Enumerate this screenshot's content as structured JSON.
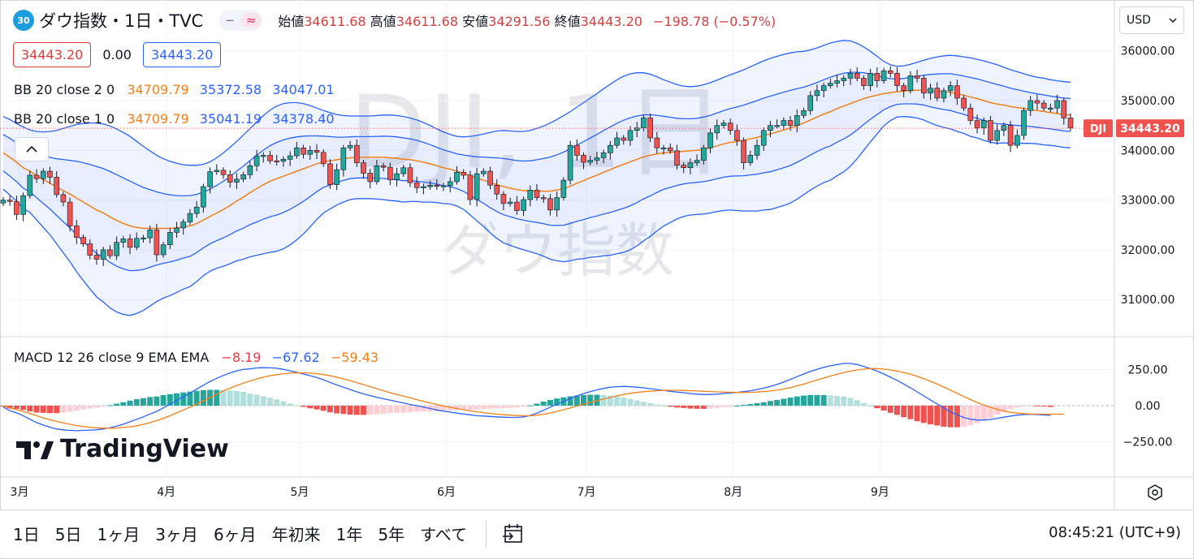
{
  "header": {
    "badge": "30",
    "symbol_title": "ダウ指数・1日・TVC",
    "pill_dash": "−",
    "pill_wave": "≈",
    "open_label": "始値",
    "open": "34611.68",
    "high_label": "高値",
    "high": "34611.68",
    "low_label": "安値",
    "low": "34291.56",
    "close_label": "終値",
    "close": "34443.20",
    "change": "−198.78 (−0.57%)"
  },
  "price_boxes": {
    "sell": "34443.20",
    "spread": "0.00",
    "buy": "34443.20"
  },
  "indicators": {
    "bb2": {
      "name": "BB 20 close 2 0",
      "basis": "34709.79",
      "upper": "35372.58",
      "lower": "34047.01"
    },
    "bb1": {
      "name": "BB 20 close 1 0",
      "basis": "34709.79",
      "upper": "35041.19",
      "lower": "34378.40"
    },
    "macd": {
      "name": "MACD 12 26 close 9 EMA EMA",
      "hist": "−8.19",
      "macd": "−67.62",
      "signal": "−59.43"
    }
  },
  "currency": "USD",
  "watermark": {
    "main": "DJI, 1日",
    "sub": "ダウ指数"
  },
  "logo_text": "TradingView",
  "last_price_label": {
    "symbol": "DJI",
    "price": "34443.20"
  },
  "range_buttons": [
    "1日",
    "5日",
    "1ヶ月",
    "3ヶ月",
    "6ヶ月",
    "年初来",
    "1年",
    "5年",
    "すべて"
  ],
  "clock": "08:45:21 (UTC+9)",
  "colors": {
    "up": "#26a69a",
    "down": "#ef5350",
    "bb_basis": "#f57f17",
    "bb_band": "#2962ff",
    "hist_up": "#26a69a",
    "hist_up_light": "#b2dfdb",
    "hist_down": "#ef5350",
    "hist_down_light": "#ffcdd2",
    "macd_line": "#2962ff",
    "signal_line": "#f57f17"
  },
  "chart_data": {
    "type": "candlestick",
    "title": "ダウ指数・1日・TVC",
    "price_axis": {
      "ticks": [
        31000,
        32000,
        33000,
        34000,
        35000,
        36000
      ],
      "labels": [
        "31000.00",
        "32000.00",
        "33000.00",
        "34000.00",
        "35000.00",
        "36000.00"
      ]
    },
    "macd_axis": {
      "ticks": [
        250,
        0,
        -250
      ],
      "labels": [
        "250.00",
        "0.00",
        "−250.00"
      ]
    },
    "x_axis": {
      "labels": [
        "3月",
        "4月",
        "5月",
        "6月",
        "7月",
        "8月",
        "9月"
      ]
    },
    "last_price": 34443.2,
    "candles": {
      "start": "2023-03-01",
      "close": [
        33000,
        32970,
        32710,
        33090,
        33500,
        33430,
        33580,
        33460,
        33110,
        32960,
        32480,
        32250,
        32120,
        31890,
        31810,
        32000,
        31880,
        32150,
        32220,
        32050,
        32230,
        32240,
        32400,
        31900,
        32100,
        32350,
        32440,
        32560,
        32730,
        32860,
        33270,
        33570,
        33600,
        33510,
        33360,
        33420,
        33510,
        33690,
        33890,
        33900,
        33790,
        33780,
        33820,
        33890,
        34050,
        33920,
        34000,
        33960,
        33730,
        33310,
        33610,
        34050,
        34100,
        33750,
        33540,
        33370,
        33690,
        33660,
        33410,
        33530,
        33650,
        33350,
        33250,
        33270,
        33300,
        33290,
        33290,
        33370,
        33560,
        33500,
        33010,
        33530,
        33580,
        33300,
        33120,
        32930,
        32960,
        32790,
        33010,
        33200,
        33050,
        33030,
        32800,
        33050,
        33400,
        34100,
        33900,
        33760,
        33800,
        33850,
        33950,
        34100,
        34250,
        34200,
        34400,
        34450,
        34650,
        34250,
        34050,
        34050,
        33990,
        33700,
        33650,
        33750,
        33800,
        34050,
        34350,
        34500,
        34550,
        34400,
        34200,
        33750,
        33900,
        34100,
        34400,
        34500,
        34500,
        34600,
        34500,
        34700,
        34800,
        35100,
        35200,
        35300,
        35350,
        35400,
        35450,
        35550,
        35450,
        35300,
        35550,
        35400,
        35600,
        35550,
        35300,
        35200,
        35500,
        35450,
        35150,
        35250,
        35050,
        35200,
        35300,
        35050,
        34850,
        34600,
        34450,
        34600,
        34200,
        34400,
        34500,
        34100,
        34300,
        34800,
        35000,
        34950,
        34850,
        34850,
        35000,
        34650,
        34450
      ]
    },
    "bollinger_2sigma": {
      "basis": [
        33950,
        33860,
        33760,
        33650,
        33580,
        33490,
        33410,
        33340,
        33260,
        33190,
        33120,
        33040,
        32960,
        32880,
        32800,
        32740,
        32660,
        32590,
        32530,
        32480,
        32450,
        32430,
        32430,
        32430,
        32430,
        32430,
        32440,
        32460,
        32480,
        32530,
        32600,
        32670,
        32740,
        32810,
        32890,
        32980,
        33060,
        33150,
        33230,
        33310,
        33380,
        33430,
        33480,
        33530,
        33580,
        33630,
        33680,
        33730,
        33770,
        33790,
        33810,
        33830,
        33850,
        33860,
        33860,
        33860,
        33860,
        33860,
        33850,
        33840,
        33820,
        33810,
        33790,
        33760,
        33730,
        33690,
        33650,
        33620,
        33580,
        33540,
        33490,
        33440,
        33400,
        33350,
        33310,
        33270,
        33240,
        33210,
        33190,
        33180,
        33180,
        33180,
        33180,
        33200,
        33230,
        33280,
        33340,
        33390,
        33450,
        33500,
        33560,
        33610,
        33670,
        33720,
        33770,
        33820,
        33870,
        33900,
        33930,
        33950,
        33960,
        33970,
        33980,
        33990,
        34000,
        34020,
        34050,
        34090,
        34130,
        34160,
        34180,
        34200,
        34230,
        34260,
        34300,
        34330,
        34370,
        34410,
        34450,
        34500,
        34550,
        34610,
        34670,
        34730,
        34780,
        34840,
        34890,
        34940,
        34990,
        35040,
        35080,
        35110,
        35140,
        35160,
        35180,
        35190,
        35200,
        35210,
        35210,
        35200,
        35190,
        35180,
        35170,
        35140,
        35110,
        35070,
        35040,
        35000,
        34960,
        34930,
        34910,
        34880,
        34860,
        34840,
        34820,
        34800,
        34780,
        34760,
        34740,
        34720,
        34710
      ],
      "upper": [
        34680,
        34620,
        34540,
        34470,
        34410,
        34380,
        34370,
        34380,
        34400,
        34440,
        34480,
        34520,
        34540,
        34550,
        34550,
        34530,
        34490,
        34430,
        34360,
        34280,
        34180,
        34080,
        33990,
        33900,
        33830,
        33780,
        33740,
        33710,
        33700,
        33700,
        33720,
        33770,
        33850,
        33950,
        34060,
        34180,
        34310,
        34440,
        34570,
        34700,
        34810,
        34890,
        34940,
        34960,
        34960,
        34940,
        34900,
        34850,
        34800,
        34760,
        34720,
        34700,
        34690,
        34690,
        34690,
        34690,
        34700,
        34710,
        34710,
        34700,
        34680,
        34650,
        34610,
        34560,
        34500,
        34430,
        34370,
        34320,
        34280,
        34270,
        34280,
        34300,
        34330,
        34360,
        34390,
        34400,
        34390,
        34380,
        34380,
        34400,
        34440,
        34490,
        34550,
        34620,
        34700,
        34780,
        34870,
        34960,
        35050,
        35140,
        35240,
        35330,
        35420,
        35490,
        35540,
        35560,
        35560,
        35530,
        35480,
        35420,
        35370,
        35320,
        35290,
        35280,
        35290,
        35320,
        35360,
        35410,
        35470,
        35520,
        35570,
        35620,
        35680,
        35740,
        35800,
        35850,
        35890,
        35930,
        35960,
        35980,
        35990,
        36020,
        36060,
        36110,
        36160,
        36190,
        36210,
        36200,
        36150,
        36080,
        35990,
        35890,
        35790,
        35720,
        35690,
        35700,
        35730,
        35770,
        35810,
        35850,
        35880,
        35900,
        35910,
        35900,
        35880,
        35860,
        35830,
        35800,
        35760,
        35720,
        35670,
        35620,
        35580,
        35540,
        35500,
        35470,
        35450,
        35420,
        35400,
        35380,
        35370
      ],
      "lower": [
        33220,
        33100,
        32980,
        32830,
        32750,
        32600,
        32450,
        32300,
        32120,
        31940,
        31760,
        31560,
        31380,
        31210,
        31050,
        30950,
        30830,
        30750,
        30700,
        30680,
        30720,
        30780,
        30870,
        30960,
        31030,
        31080,
        31140,
        31210,
        31260,
        31360,
        31480,
        31570,
        31630,
        31670,
        31720,
        31780,
        31810,
        31860,
        31890,
        31920,
        31950,
        31970,
        32020,
        32100,
        32200,
        32320,
        32460,
        32610,
        32740,
        32820,
        32900,
        32960,
        33010,
        33030,
        33030,
        33030,
        33020,
        33010,
        32990,
        32980,
        32960,
        32970,
        32970,
        32960,
        32960,
        32950,
        32930,
        32920,
        32880,
        32810,
        32700,
        32580,
        32470,
        32340,
        32230,
        32140,
        32090,
        32040,
        32000,
        31960,
        31920,
        31870,
        31810,
        31780,
        31760,
        31780,
        31810,
        31820,
        31850,
        31860,
        31880,
        31890,
        31920,
        31950,
        32000,
        32080,
        32180,
        32270,
        32380,
        32480,
        32550,
        32620,
        32670,
        32700,
        32710,
        32720,
        32740,
        32770,
        32790,
        32800,
        32790,
        32780,
        32780,
        32780,
        32800,
        32810,
        32850,
        32890,
        32940,
        33020,
        33110,
        33200,
        33280,
        33350,
        33400,
        33490,
        33570,
        33680,
        33830,
        34000,
        34170,
        34330,
        34490,
        34600,
        34670,
        34680,
        34670,
        34650,
        34610,
        34550,
        34500,
        34460,
        34430,
        34380,
        34340,
        34280,
        34250,
        34200,
        34160,
        34140,
        34150,
        34140,
        34140,
        34140,
        34140,
        34130,
        34110,
        34100,
        34080,
        34060,
        34050
      ]
    },
    "bollinger_1sigma": {
      "basis": "same as 2σ basis",
      "upper_lower_offset": "half of 2σ band width"
    },
    "macd": {
      "macd": [
        -10,
        -35,
        -50,
        -70,
        -95,
        -118,
        -135,
        -150,
        -162,
        -168,
        -172,
        -174,
        -172,
        -170,
        -168,
        -162,
        -154,
        -142,
        -128,
        -112,
        -95,
        -78,
        -58,
        -40,
        -15,
        10,
        36,
        62,
        88,
        115,
        142,
        168,
        190,
        210,
        228,
        242,
        252,
        256,
        262,
        264,
        263,
        260,
        252,
        242,
        232,
        220,
        208,
        196,
        180,
        162,
        144,
        128,
        112,
        96,
        82,
        70,
        58,
        48,
        38,
        28,
        18,
        8,
        0,
        -10,
        -20,
        -30,
        -38,
        -45,
        -52,
        -58,
        -64,
        -70,
        -72,
        -75,
        -78,
        -80,
        -82,
        -82,
        -78,
        -68,
        -52,
        -32,
        -10,
        10,
        30,
        50,
        68,
        84,
        98,
        110,
        120,
        128,
        132,
        134,
        132,
        128,
        124,
        118,
        112,
        106,
        100,
        94,
        90,
        84,
        80,
        78,
        78,
        80,
        84,
        88,
        92,
        98,
        104,
        112,
        122,
        134,
        148,
        164,
        182,
        202,
        220,
        238,
        252,
        266,
        278,
        286,
        294,
        294,
        286,
        272,
        258,
        240,
        220,
        198,
        176,
        150,
        124,
        96,
        68,
        40,
        12,
        -16,
        -42,
        -64,
        -82,
        -94,
        -100,
        -100,
        -96,
        -88,
        -80,
        -72,
        -66,
        -62,
        -60,
        -62,
        -65,
        -68
      ],
      "signal": [
        -5,
        -15,
        -28,
        -40,
        -55,
        -70,
        -85,
        -98,
        -110,
        -120,
        -130,
        -138,
        -145,
        -150,
        -154,
        -156,
        -157,
        -156,
        -152,
        -147,
        -140,
        -130,
        -118,
        -104,
        -88,
        -70,
        -50,
        -30,
        -10,
        12,
        34,
        58,
        80,
        102,
        122,
        140,
        156,
        172,
        186,
        198,
        208,
        216,
        222,
        226,
        228,
        228,
        226,
        222,
        216,
        208,
        198,
        186,
        174,
        160,
        146,
        132,
        118,
        104,
        90,
        78,
        66,
        54,
        42,
        30,
        19,
        8,
        -2,
        -12,
        -20,
        -28,
        -36,
        -43,
        -49,
        -54,
        -59,
        -63,
        -66,
        -69,
        -70,
        -70,
        -66,
        -60,
        -50,
        -40,
        -28,
        -15,
        -2,
        10,
        22,
        34,
        46,
        58,
        68,
        78,
        86,
        92,
        97,
        101,
        104,
        106,
        107,
        107,
        106,
        104,
        102,
        100,
        98,
        96,
        94,
        93,
        92,
        92,
        93,
        95,
        98,
        102,
        108,
        116,
        126,
        138,
        150,
        164,
        178,
        192,
        206,
        218,
        230,
        240,
        248,
        254,
        258,
        258,
        254,
        248,
        240,
        230,
        218,
        204,
        188,
        170,
        150,
        130,
        108,
        86,
        64,
        42,
        22,
        4,
        -12,
        -26,
        -38,
        -46,
        -52,
        -56,
        -58,
        -59,
        -59,
        -59,
        -59,
        -59
      ],
      "histogram": "macd minus signal"
    }
  }
}
